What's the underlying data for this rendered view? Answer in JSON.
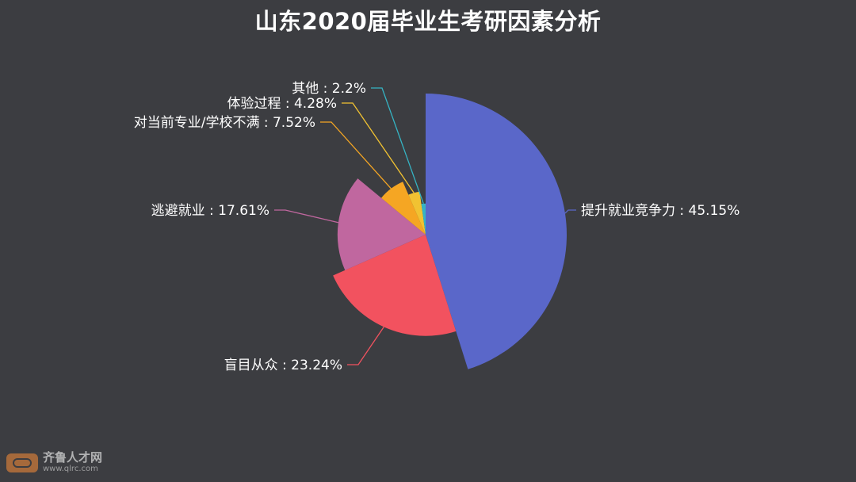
{
  "chart_data": {
    "type": "pie",
    "variant": "rose (nightingale), radius proportional to value",
    "title": "山东2020届毕业生考研因素分析",
    "slices": [
      {
        "label": "提升就业竞争力",
        "value": 45.15,
        "color": "#5a67c9",
        "label_text": "提升就业竞争力 : 45.15%"
      },
      {
        "label": "盲目从众",
        "value": 23.24,
        "color": "#f2525f",
        "label_text": "盲目从众 : 23.24%"
      },
      {
        "label": "逃避就业",
        "value": 17.61,
        "color": "#c0679f",
        "label_text": "逃避就业 : 17.61%"
      },
      {
        "label": "对当前专业/学校不满",
        "value": 7.52,
        "color": "#f5a623",
        "label_text": "对当前专业/学校不满 : 7.52%"
      },
      {
        "label": "体验过程",
        "value": 4.28,
        "color": "#f1c232",
        "label_text": "体验过程 : 4.28%"
      },
      {
        "label": "其他",
        "value": 2.2,
        "color": "#35b4c4",
        "label_text": "其他 : 2.2%"
      }
    ],
    "legend": "none"
  },
  "watermark": {
    "name": "齐鲁人才网",
    "url": "www.qlrc.com"
  }
}
